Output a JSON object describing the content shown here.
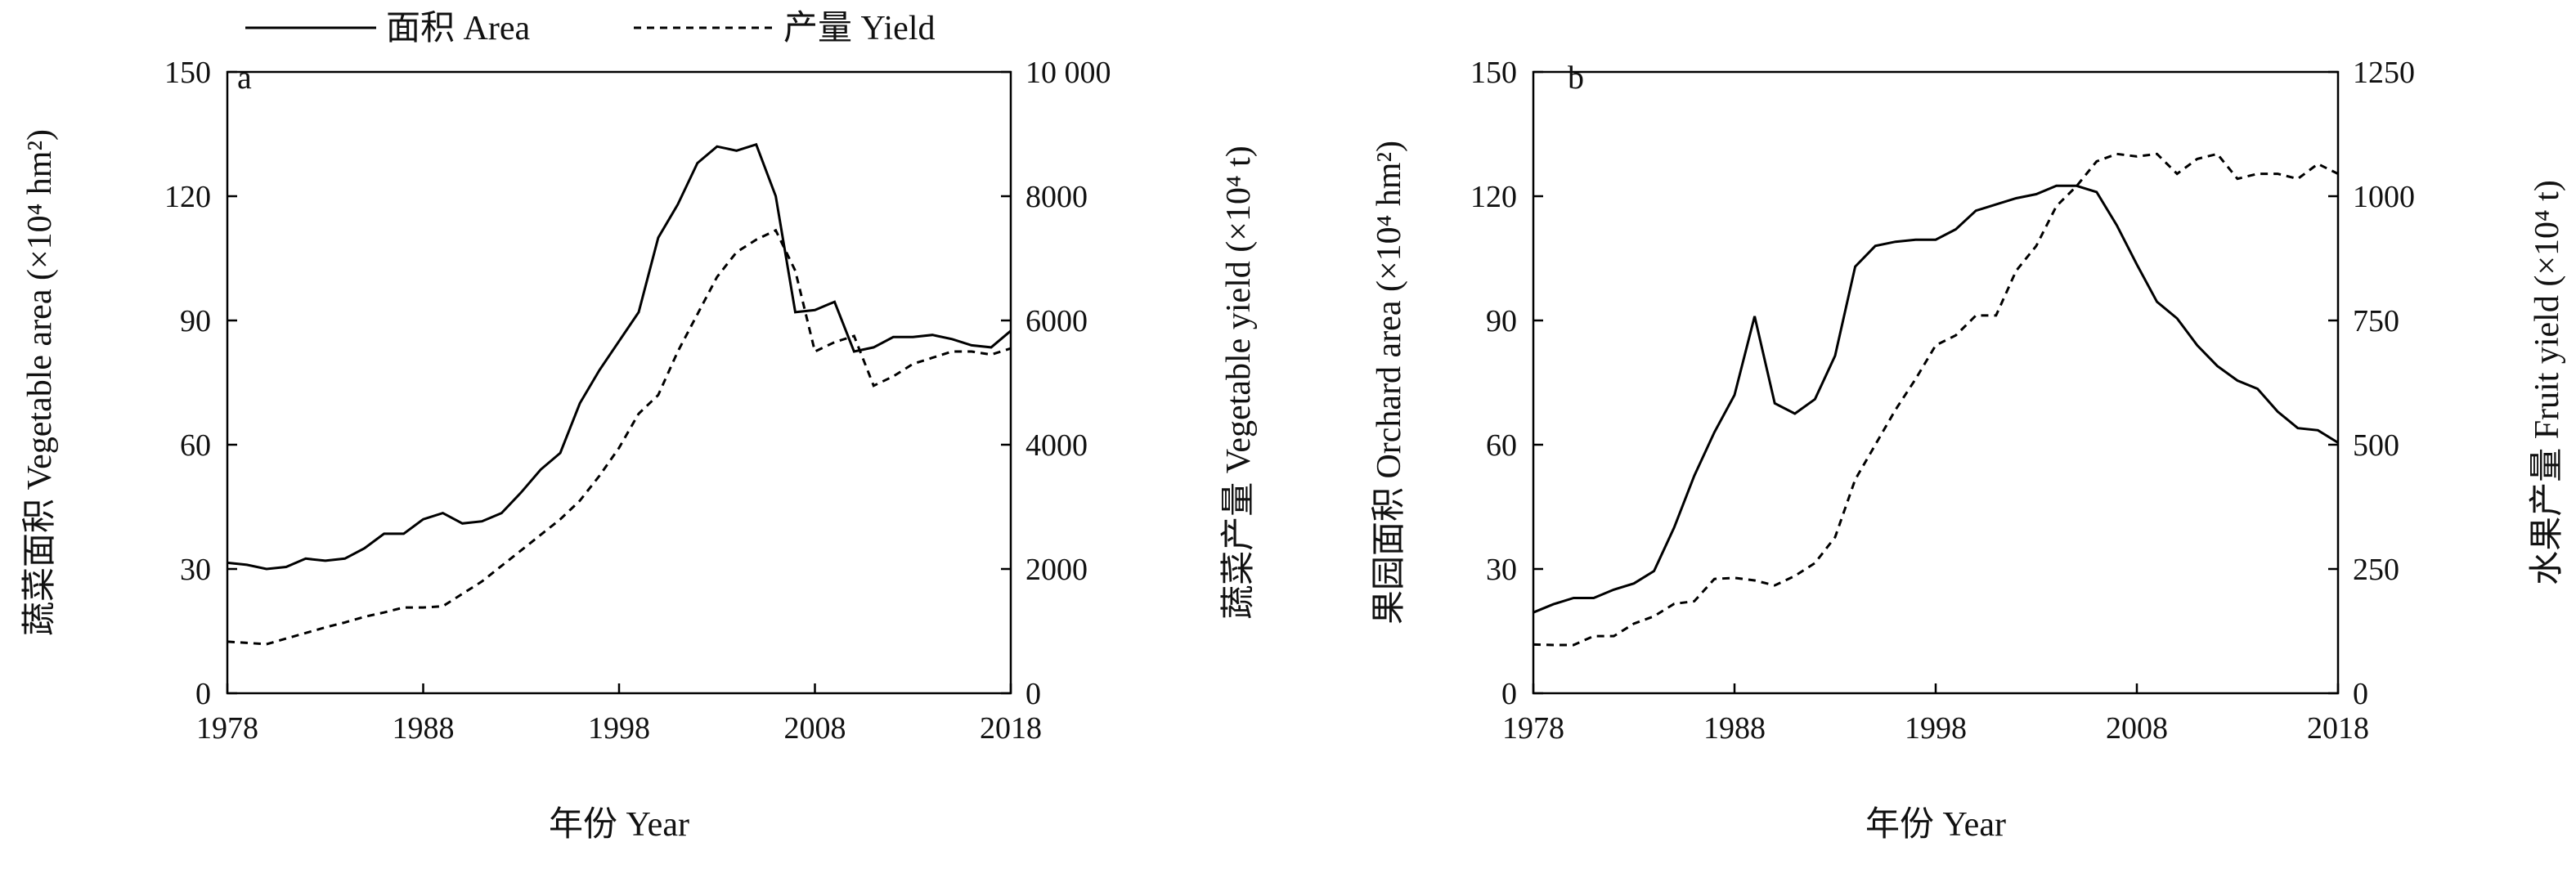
{
  "legend": {
    "area_label": "面积 Area",
    "yield_label": "产量 Yield"
  },
  "chart_data": [
    {
      "type": "line",
      "panel": "a",
      "xlabel": "年份 Year",
      "ylabel": "蔬菜面积 Vegetable area (×10⁴ hm²)",
      "y2label": "蔬菜产量 Vegetable yield (×10⁴ t)",
      "xlim": [
        1978,
        2018
      ],
      "ylim": [
        0,
        150
      ],
      "y2lim": [
        0,
        10000
      ],
      "x_ticks": [
        1978,
        1988,
        1998,
        2008,
        2018
      ],
      "y_ticks": [
        0,
        30,
        60,
        90,
        120,
        150
      ],
      "y_tick_labels": [
        "0",
        "30",
        "60",
        "90",
        "120",
        "150"
      ],
      "y2_ticks": [
        0,
        2000,
        4000,
        6000,
        8000,
        10000
      ],
      "y2_tick_labels": [
        "0",
        "2000",
        "4000",
        "6000",
        "8000",
        "10 000"
      ],
      "x": [
        1978,
        1979,
        1980,
        1981,
        1982,
        1983,
        1984,
        1985,
        1986,
        1987,
        1988,
        1989,
        1990,
        1991,
        1992,
        1993,
        1994,
        1995,
        1996,
        1997,
        1998,
        1999,
        2000,
        2001,
        2002,
        2003,
        2004,
        2005,
        2006,
        2007,
        2008,
        2009,
        2010,
        2011,
        2012,
        2013,
        2014,
        2015,
        2016,
        2017,
        2018
      ],
      "series": [
        {
          "name": "面积 Area",
          "axis": "left",
          "dash": "solid",
          "values": [
            31.5,
            31,
            30,
            30.5,
            32.5,
            32,
            32.5,
            35,
            38.5,
            38.5,
            42,
            43.5,
            41,
            41.5,
            43.5,
            48.5,
            54,
            58,
            70,
            78,
            85,
            92,
            110,
            118,
            128,
            132,
            131,
            132.5,
            120,
            92,
            92.5,
            94.5,
            82.5,
            83.5,
            86,
            86,
            86.5,
            85.5,
            84,
            83.5,
            87.5
          ]
        },
        {
          "name": "产量 Yield",
          "axis": "right",
          "dash": "dashed",
          "values": [
            830,
            810,
            790,
            880,
            970,
            1060,
            1140,
            1230,
            1300,
            1380,
            1380,
            1400,
            1600,
            1800,
            2050,
            2300,
            2550,
            2800,
            3100,
            3500,
            3950,
            4500,
            4800,
            5500,
            6100,
            6700,
            7100,
            7300,
            7450,
            6800,
            5500,
            5650,
            5750,
            4950,
            5100,
            5300,
            5400,
            5500,
            5500,
            5450,
            5550
          ]
        }
      ]
    },
    {
      "type": "line",
      "panel": "b",
      "xlabel": "年份 Year",
      "ylabel": "果园面积 Orchard area (×10⁴ hm²)",
      "y2label": "水果产量 Fruit yield (×10⁴ t)",
      "xlim": [
        1978,
        2018
      ],
      "ylim": [
        0,
        150
      ],
      "y2lim": [
        0,
        1250
      ],
      "x_ticks": [
        1978,
        1988,
        1998,
        2008,
        2018
      ],
      "y_ticks": [
        0,
        30,
        60,
        90,
        120,
        150
      ],
      "y_tick_labels": [
        "0",
        "30",
        "60",
        "90",
        "120",
        "150"
      ],
      "y2_ticks": [
        0,
        250,
        500,
        750,
        1000,
        1250
      ],
      "y2_tick_labels": [
        "0",
        "250",
        "500",
        "750",
        "1000",
        "1250"
      ],
      "x": [
        1978,
        1979,
        1980,
        1981,
        1982,
        1983,
        1984,
        1985,
        1986,
        1987,
        1988,
        1989,
        1990,
        1991,
        1992,
        1993,
        1994,
        1995,
        1996,
        1997,
        1998,
        1999,
        2000,
        2001,
        2002,
        2003,
        2004,
        2005,
        2006,
        2007,
        2008,
        2009,
        2010,
        2011,
        2012,
        2013,
        2014,
        2015,
        2016,
        2017,
        2018
      ],
      "series": [
        {
          "name": "面积 Area",
          "axis": "left",
          "dash": "solid",
          "values": [
            19.5,
            21.5,
            23,
            23,
            25,
            26.5,
            29.5,
            40,
            52.5,
            63,
            72,
            91,
            70,
            67.5,
            71,
            81.5,
            103,
            108,
            109,
            109.5,
            109.5,
            112,
            116.5,
            118,
            119.5,
            120.5,
            122.5,
            122.5,
            121,
            113,
            103.5,
            94.5,
            90.5,
            84,
            79,
            75.5,
            73.5,
            68,
            64,
            63.5,
            60.5
          ]
        },
        {
          "name": "产量 Yield",
          "axis": "right",
          "dash": "dashed",
          "values": [
            98,
            97,
            97,
            115,
            115,
            140,
            155,
            180,
            185,
            230,
            232,
            227,
            217,
            236,
            262,
            314,
            430,
            500,
            570,
            632,
            700,
            720,
            760,
            760,
            850,
            900,
            980,
            1020,
            1070,
            1085,
            1080,
            1085,
            1045,
            1075,
            1085,
            1035,
            1045,
            1045,
            1035,
            1065,
            1045
          ]
        }
      ]
    }
  ]
}
